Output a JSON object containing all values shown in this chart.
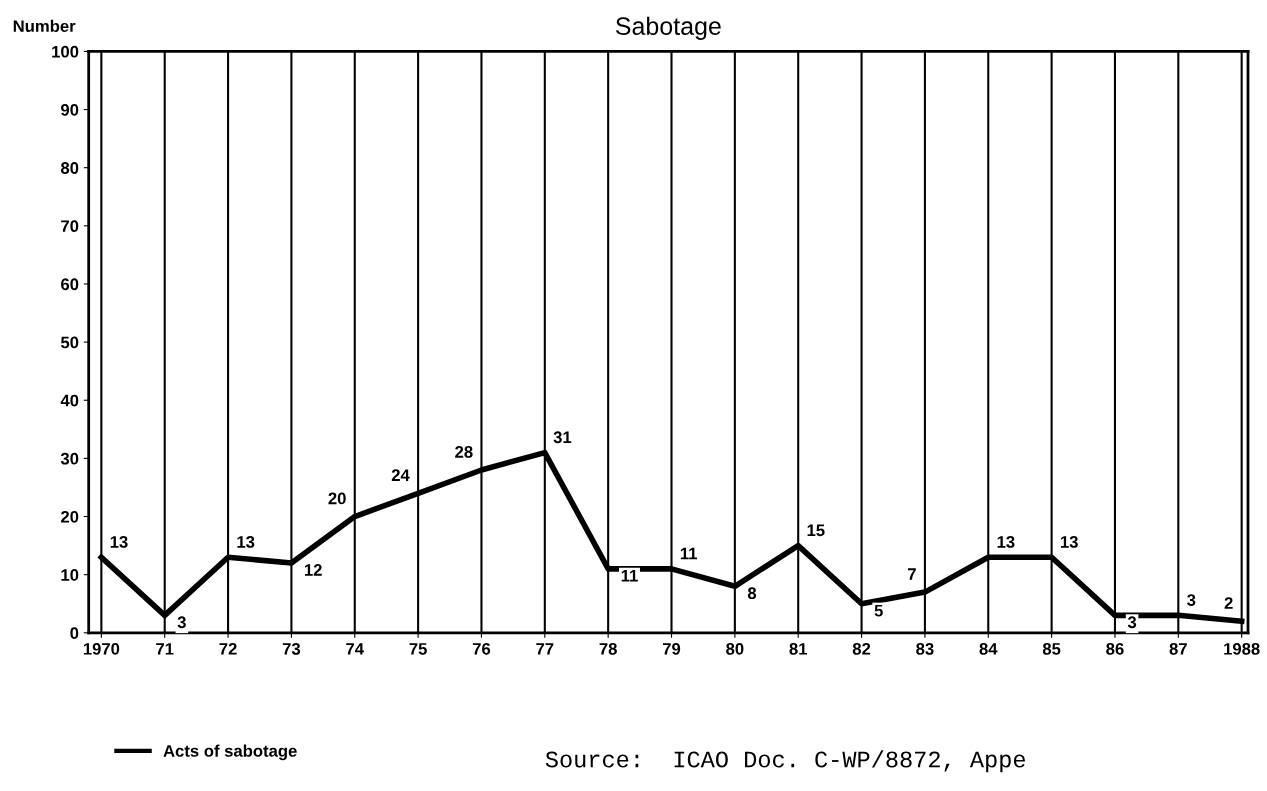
{
  "chart_data": {
    "type": "line",
    "title": "Sabotage",
    "ylabel": "Number",
    "categories": [
      "1970",
      "71",
      "72",
      "73",
      "74",
      "75",
      "76",
      "77",
      "78",
      "79",
      "80",
      "81",
      "82",
      "83",
      "84",
      "85",
      "86",
      "87",
      "1988"
    ],
    "series": [
      {
        "name": "Acts of sabotage",
        "color": "#000000",
        "values": [
          13,
          3,
          13,
          12,
          20,
          24,
          28,
          31,
          11,
          11,
          8,
          15,
          5,
          7,
          13,
          13,
          3,
          3,
          2
        ]
      }
    ],
    "ylim": [
      0,
      100
    ],
    "yticks": [
      0,
      10,
      20,
      30,
      40,
      50,
      60,
      70,
      80,
      90,
      100
    ],
    "grid": "x",
    "legend": "bottom left",
    "data_labels": true,
    "marker": "none",
    "line_style": "solid",
    "annotations": [
      "Source:  ICAO Doc. C-WP/8872, Appe"
    ]
  }
}
